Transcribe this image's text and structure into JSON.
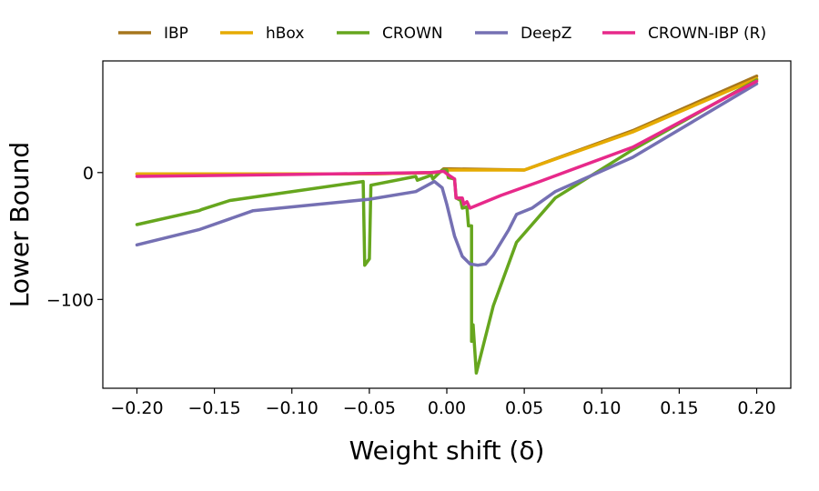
{
  "chart_data": {
    "type": "line",
    "title": "",
    "xlabel": "Weight shift (δ)",
    "ylabel": "Lower Bound",
    "xlim": [
      -0.222,
      0.222
    ],
    "ylim": [
      -170,
      88
    ],
    "xticks": [
      -0.2,
      -0.15,
      -0.1,
      -0.05,
      0.0,
      0.05,
      0.1,
      0.15,
      0.2
    ],
    "xtick_labels": [
      "−0.20",
      "−0.15",
      "−0.10",
      "−0.05",
      "0.00",
      "0.05",
      "0.10",
      "0.15",
      "0.20"
    ],
    "yticks": [
      0,
      -100
    ],
    "ytick_labels": [
      "0",
      "−100"
    ],
    "grid": false,
    "legend_position": "top-center",
    "series": [
      {
        "name": "IBP",
        "color": "#a6761d",
        "points": [
          [
            -0.2,
            -1
          ],
          [
            -0.05,
            -1
          ],
          [
            -0.005,
            0
          ],
          [
            -0.002,
            3
          ],
          [
            0.05,
            2
          ],
          [
            0.12,
            33
          ],
          [
            0.2,
            76
          ]
        ]
      },
      {
        "name": "hBox",
        "color": "#e6ab02",
        "points": [
          [
            -0.2,
            -1
          ],
          [
            -0.05,
            -1
          ],
          [
            -0.005,
            0
          ],
          [
            -0.002,
            2
          ],
          [
            0.05,
            2
          ],
          [
            0.12,
            32
          ],
          [
            0.2,
            74
          ]
        ]
      },
      {
        "name": "CROWN",
        "color": "#66a61e",
        "points": [
          [
            -0.2,
            -41
          ],
          [
            -0.16,
            -30
          ],
          [
            -0.158,
            -29
          ],
          [
            -0.14,
            -22
          ],
          [
            -0.054,
            -7
          ],
          [
            -0.053,
            -73
          ],
          [
            -0.05,
            -68
          ],
          [
            -0.049,
            -10
          ],
          [
            -0.02,
            -3
          ],
          [
            -0.019,
            -6
          ],
          [
            -0.01,
            -2
          ],
          [
            -0.009,
            -5
          ],
          [
            -0.003,
            2
          ],
          [
            0.0,
            2
          ],
          [
            0.001,
            -4
          ],
          [
            0.005,
            -5
          ],
          [
            0.006,
            -20
          ],
          [
            0.009,
            -22
          ],
          [
            0.01,
            -28
          ],
          [
            0.013,
            -27
          ],
          [
            0.014,
            -42
          ],
          [
            0.016,
            -42
          ],
          [
            0.016,
            -133
          ],
          [
            0.017,
            -120
          ],
          [
            0.019,
            -158
          ],
          [
            0.03,
            -105
          ],
          [
            0.045,
            -55
          ],
          [
            0.07,
            -20
          ],
          [
            0.12,
            18
          ],
          [
            0.2,
            73
          ]
        ]
      },
      {
        "name": "DeepZ",
        "color": "#7570b3",
        "points": [
          [
            -0.2,
            -57
          ],
          [
            -0.16,
            -45
          ],
          [
            -0.125,
            -30
          ],
          [
            -0.05,
            -21
          ],
          [
            -0.02,
            -15
          ],
          [
            -0.008,
            -7
          ],
          [
            -0.003,
            -12
          ],
          [
            0.0,
            -25
          ],
          [
            0.005,
            -50
          ],
          [
            0.01,
            -66
          ],
          [
            0.015,
            -72
          ],
          [
            0.02,
            -73
          ],
          [
            0.025,
            -72
          ],
          [
            0.03,
            -65
          ],
          [
            0.04,
            -45
          ],
          [
            0.045,
            -33
          ],
          [
            0.055,
            -28
          ],
          [
            0.07,
            -15
          ],
          [
            0.12,
            12
          ],
          [
            0.2,
            70
          ]
        ]
      },
      {
        "name": "CROWN-IBP (R)",
        "color": "#e7298a",
        "points": [
          [
            -0.2,
            -3
          ],
          [
            -0.1,
            -1.5
          ],
          [
            -0.01,
            0
          ],
          [
            -0.002,
            1
          ],
          [
            0.0,
            -1
          ],
          [
            0.005,
            -5
          ],
          [
            0.006,
            -20
          ],
          [
            0.01,
            -20
          ],
          [
            0.011,
            -25
          ],
          [
            0.013,
            -23
          ],
          [
            0.015,
            -28
          ],
          [
            0.035,
            -18
          ],
          [
            0.06,
            -7
          ],
          [
            0.12,
            20
          ],
          [
            0.2,
            72
          ]
        ]
      }
    ]
  }
}
